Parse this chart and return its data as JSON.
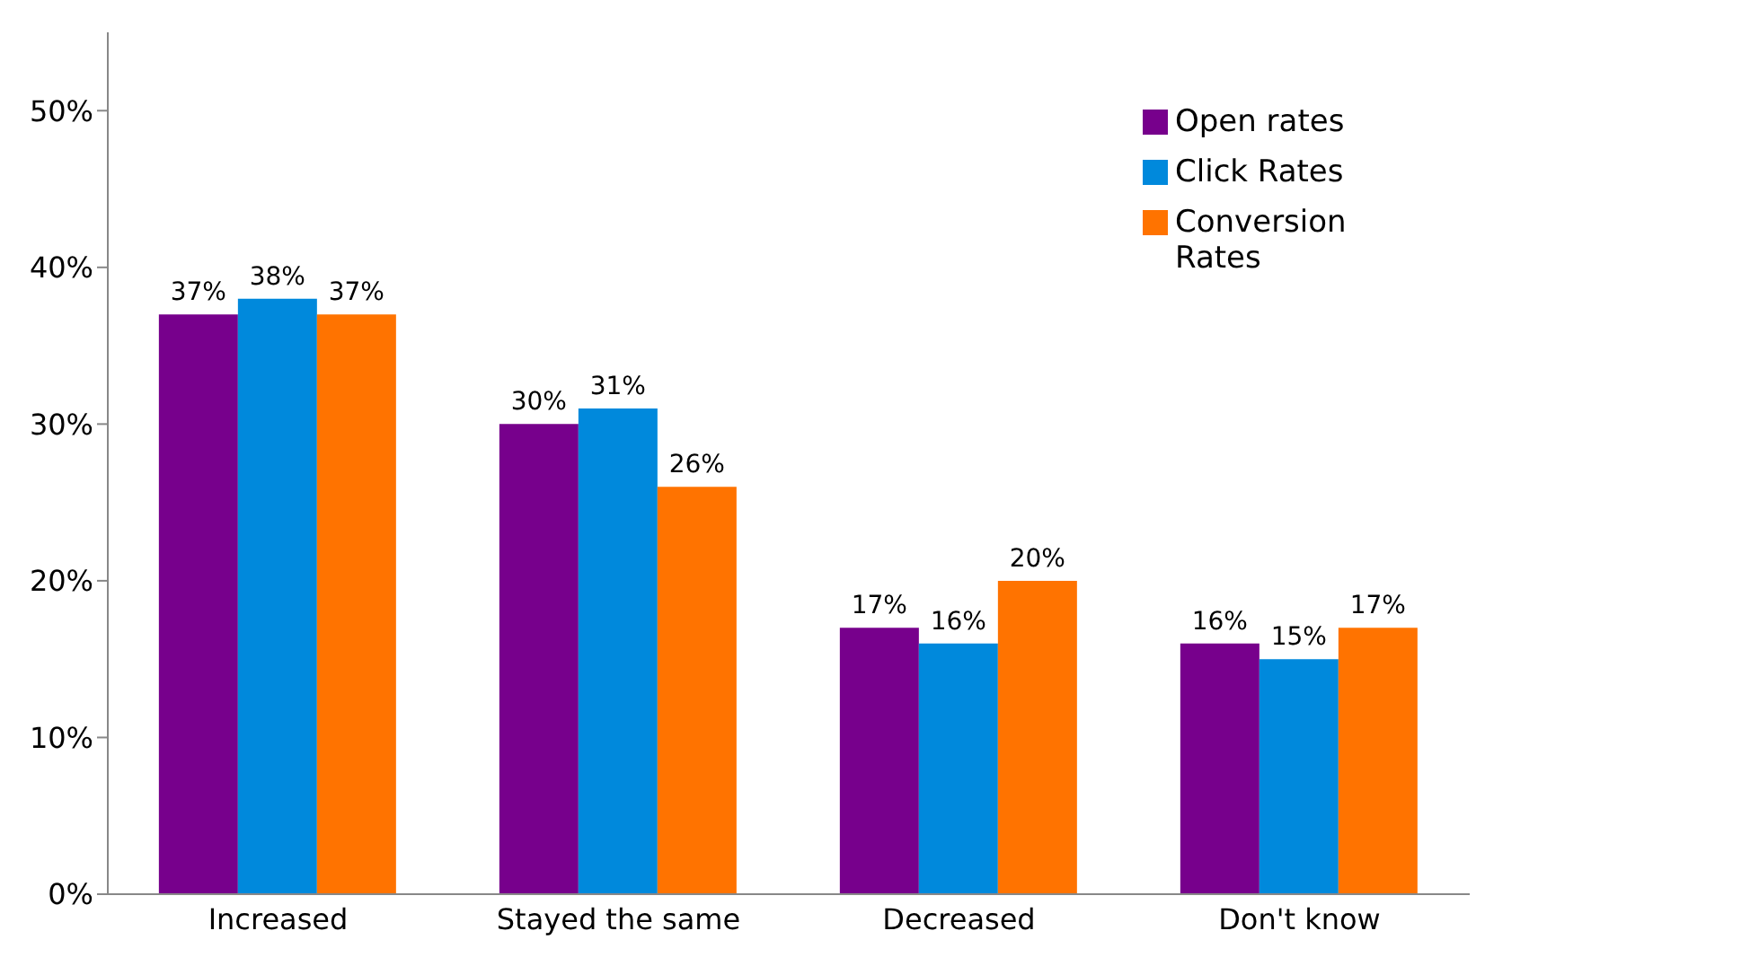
{
  "chart_data": {
    "type": "bar",
    "categories": [
      "Increased",
      "Stayed the same",
      "Decreased",
      "Don't know"
    ],
    "series": [
      {
        "name": "Open rates",
        "color": "#77008c",
        "values": [
          37,
          30,
          17,
          16
        ],
        "value_labels": [
          "37%",
          "30%",
          "17%",
          "16%"
        ]
      },
      {
        "name": "Click Rates",
        "color": "#0089dc",
        "values": [
          38,
          31,
          16,
          15
        ],
        "value_labels": [
          "38%",
          "31%",
          "16%",
          "15%"
        ]
      },
      {
        "name": "Conversion Rates",
        "color": "#ff7300",
        "values": [
          37,
          26,
          20,
          17
        ],
        "value_labels": [
          "37%",
          "26%",
          "20%",
          "17%"
        ]
      }
    ],
    "ylim": [
      0,
      55
    ],
    "yticks": [
      {
        "value": 0,
        "label": "0%"
      },
      {
        "value": 10,
        "label": "10%"
      },
      {
        "value": 20,
        "label": "20%"
      },
      {
        "value": 30,
        "label": "30%"
      },
      {
        "value": 40,
        "label": "40%"
      },
      {
        "value": 50,
        "label": "50%"
      }
    ],
    "legend": "top right",
    "grid": false
  }
}
